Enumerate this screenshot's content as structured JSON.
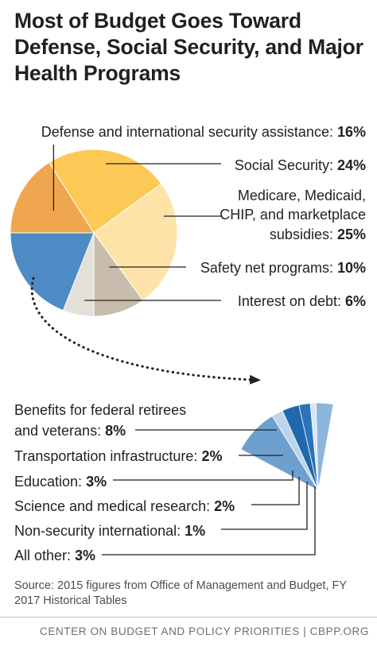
{
  "title": "Most of Budget Goes Toward Defense, Social Security, and Major Health Programs",
  "chart_data": [
    {
      "type": "pie",
      "slices": [
        {
          "label_parts": [
            {
              "text": "Defense and international security assistance: ",
              "bold": false
            },
            {
              "text": "16%",
              "bold": true
            }
          ],
          "value": 16,
          "color": "#f0a64f"
        },
        {
          "label_parts": [
            {
              "text": "Social Security: ",
              "bold": false
            },
            {
              "text": "24%",
              "bold": true
            }
          ],
          "value": 24,
          "color": "#fcc957"
        },
        {
          "label_parts": [
            {
              "text": "Medicare, Medicaid,",
              "bold": false
            }
          ],
          "label_parts_2": [
            {
              "text": "CHIP, and marketplace",
              "bold": false
            }
          ],
          "label_parts_3": [
            {
              "text": "subsidies: ",
              "bold": false
            },
            {
              "text": "25%",
              "bold": true
            }
          ],
          "value": 25,
          "color": "#fde3a7"
        },
        {
          "label_parts": [
            {
              "text": "Safety net programs: ",
              "bold": false
            },
            {
              "text": "10%",
              "bold": true
            }
          ],
          "value": 10,
          "color": "#c8bcac"
        },
        {
          "label_parts": [
            {
              "text": "Interest on debt: ",
              "bold": false
            },
            {
              "text": "6%",
              "bold": true
            }
          ],
          "value": 6,
          "color": "#e4dfd9"
        },
        {
          "label_parts": [],
          "value": 19,
          "color": "#4e8bc5"
        }
      ]
    },
    {
      "type": "pie",
      "slices": [
        {
          "label_parts": [
            {
              "text": "Benefits for federal retirees",
              "bold": false
            }
          ],
          "label_parts_2": [
            {
              "text": "and veterans: ",
              "bold": false
            },
            {
              "text": "8%",
              "bold": true
            }
          ],
          "value": 8,
          "color": "#6da0cf"
        },
        {
          "label_parts": [
            {
              "text": "Transportation infrastructure: ",
              "bold": false
            },
            {
              "text": "2%",
              "bold": true
            }
          ],
          "value": 2,
          "color": "#bdd4ea"
        },
        {
          "label_parts": [
            {
              "text": "Education: ",
              "bold": false
            },
            {
              "text": "3%",
              "bold": true
            }
          ],
          "value": 3,
          "color": "#1f68ad"
        },
        {
          "label_parts": [
            {
              "text": "Science and medical research: ",
              "bold": false
            },
            {
              "text": "2%",
              "bold": true
            }
          ],
          "value": 2,
          "color": "#2b74b9"
        },
        {
          "label_parts": [
            {
              "text": "Non-security international: ",
              "bold": false
            },
            {
              "text": "1%",
              "bold": true
            }
          ],
          "value": 1,
          "color": "#d8e6f3"
        },
        {
          "label_parts": [
            {
              "text": "All other: ",
              "bold": false
            },
            {
              "text": "3%",
              "bold": true
            }
          ],
          "value": 3,
          "color": "#8db6dd"
        }
      ]
    }
  ],
  "source": "Source: 2015 figures from Office of Management and Budget, FY 2017 Historical Tables",
  "footer": "CENTER ON BUDGET AND POLICY PRIORITIES | CBPP.ORG"
}
